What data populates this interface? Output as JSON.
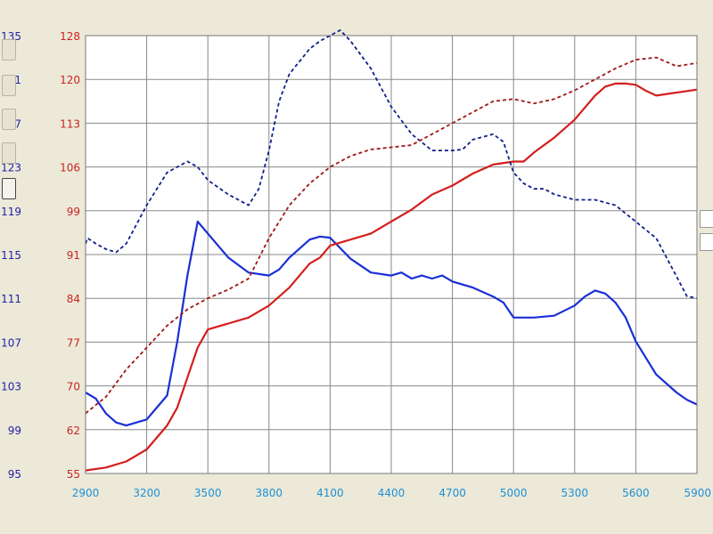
{
  "chart_data": {
    "type": "line",
    "x_ticks": [
      "2900",
      "3200",
      "3500",
      "3800",
      "4100",
      "4400",
      "4700",
      "5000",
      "5300",
      "5600",
      "5900"
    ],
    "xlim": [
      2900,
      5900
    ],
    "y_left_outer_ticks": [
      "135",
      "131",
      "127",
      "123",
      "119",
      "115",
      "111",
      "107",
      "103",
      "99",
      "95"
    ],
    "y_left_outer_range": [
      95,
      135
    ],
    "y_left_inner_ticks": [
      "128",
      "120",
      "113",
      "106",
      "99",
      "91",
      "84",
      "77",
      "70",
      "62",
      "55"
    ],
    "y_left_inner_range": [
      55,
      128
    ],
    "grid": true,
    "colors": {
      "blue": "#1a2fd6",
      "red": "#d41e1e",
      "navy_dashed": "#12208a",
      "darkred_dashed": "#a01818",
      "tick_blue": "#2222aa",
      "tick_red": "#cc2222",
      "tick_x": "#1e90d6",
      "grid": "#888888"
    },
    "series": [
      {
        "axis": "inner",
        "color_key": "blue",
        "dash": false,
        "x": [
          2900,
          2950,
          3000,
          3050,
          3100,
          3200,
          3250,
          3300,
          3350,
          3400,
          3450,
          3500,
          3600,
          3700,
          3800,
          3850,
          3900,
          4000,
          4050,
          4100,
          4200,
          4300,
          4400,
          4450,
          4500,
          4550,
          4600,
          4650,
          4700,
          4800,
          4900,
          4950,
          5000,
          5050,
          5100,
          5200,
          5300,
          5350,
          5400,
          5450,
          5500,
          5550,
          5600,
          5700,
          5800,
          5850,
          5900
        ],
        "y": [
          68.5,
          67.5,
          65,
          63.5,
          63,
          64,
          66,
          68,
          77,
          88,
          97,
          95,
          91,
          88.5,
          88,
          89,
          91,
          94,
          94.5,
          94.3,
          90.8,
          88.5,
          88,
          88.5,
          87.5,
          88,
          87.5,
          88,
          87,
          86,
          84.5,
          83.5,
          81,
          81,
          81,
          81.3,
          83,
          84.5,
          85.5,
          85,
          83.5,
          81,
          77,
          71.5,
          68.5,
          67.3,
          66.5
        ]
      },
      {
        "axis": "inner",
        "color_key": "red",
        "dash": false,
        "x": [
          2900,
          3000,
          3100,
          3200,
          3300,
          3350,
          3400,
          3450,
          3500,
          3600,
          3700,
          3800,
          3900,
          4000,
          4050,
          4100,
          4200,
          4300,
          4400,
          4500,
          4600,
          4700,
          4800,
          4900,
          5000,
          5050,
          5100,
          5200,
          5300,
          5350,
          5400,
          5450,
          5500,
          5550,
          5600,
          5650,
          5700,
          5800,
          5900
        ],
        "y": [
          55.5,
          56,
          57,
          59,
          63,
          66,
          71,
          76,
          79,
          80,
          81,
          83,
          86,
          90,
          91,
          93,
          94,
          95,
          97,
          99,
          101.5,
          103,
          105,
          106.5,
          107,
          107,
          108.5,
          111,
          114,
          116,
          118,
          119.5,
          120,
          120,
          119.8,
          118.8,
          118,
          118.5,
          119
        ]
      },
      {
        "axis": "outer",
        "color_key": "navy_dashed",
        "dash": true,
        "x": [
          2900,
          2910,
          2950,
          3000,
          3050,
          3100,
          3200,
          3300,
          3400,
          3450,
          3500,
          3600,
          3700,
          3750,
          3800,
          3850,
          3900,
          4000,
          4050,
          4100,
          4150,
          4200,
          4300,
          4400,
          4500,
          4600,
          4700,
          4750,
          4800,
          4900,
          4950,
          5000,
          5050,
          5100,
          5150,
          5200,
          5300,
          5400,
          5500,
          5600,
          5700,
          5800,
          5850,
          5900
        ],
        "y": [
          116,
          116.5,
          116,
          115.5,
          115.2,
          116,
          119.5,
          122.5,
          123.5,
          123,
          121.8,
          120.5,
          119.5,
          121,
          124.5,
          129,
          131.5,
          133.8,
          134.5,
          135,
          135.5,
          134.5,
          132,
          128.5,
          126,
          124.5,
          124.5,
          124.6,
          125.5,
          126,
          125.3,
          122.5,
          121.5,
          121,
          121,
          120.5,
          120,
          120,
          119.5,
          118,
          116.5,
          113,
          111.2,
          111
        ]
      },
      {
        "axis": "outer",
        "color_key": "darkred_dashed",
        "dash": true,
        "x": [
          2900,
          3000,
          3100,
          3200,
          3300,
          3400,
          3500,
          3600,
          3700,
          3800,
          3900,
          4000,
          4100,
          4200,
          4300,
          4400,
          4500,
          4600,
          4700,
          4800,
          4900,
          5000,
          5050,
          5100,
          5200,
          5300,
          5400,
          5500,
          5600,
          5700,
          5800,
          5900
        ],
        "y": [
          100.5,
          102,
          104.5,
          106.5,
          108.5,
          110,
          111,
          111.8,
          112.8,
          116.5,
          119.5,
          121.5,
          123,
          124,
          124.6,
          124.8,
          125,
          126,
          127,
          128,
          129,
          129.2,
          129,
          128.8,
          129.2,
          130,
          131,
          132,
          132.8,
          133,
          132.2,
          132.5
        ]
      }
    ]
  }
}
